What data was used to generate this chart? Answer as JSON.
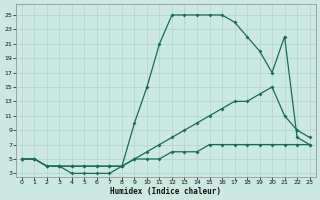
{
  "xlabel": "Humidex (Indice chaleur)",
  "bg_color": "#cce9e1",
  "line_color": "#1a6b5a",
  "grid_color": "#aed4cc",
  "xlim": [
    -0.5,
    23.5
  ],
  "ylim": [
    2.5,
    26.5
  ],
  "xticks": [
    0,
    1,
    2,
    3,
    4,
    5,
    6,
    7,
    8,
    9,
    10,
    11,
    12,
    13,
    14,
    15,
    16,
    17,
    18,
    19,
    20,
    21,
    22,
    23
  ],
  "yticks": [
    3,
    5,
    7,
    9,
    11,
    13,
    15,
    17,
    19,
    21,
    23,
    25
  ],
  "line1_x": [
    0,
    1,
    2,
    3,
    4,
    5,
    6,
    7,
    8,
    9,
    10,
    11,
    12,
    13,
    14,
    15,
    16,
    17,
    18,
    19,
    20,
    21,
    22,
    23
  ],
  "line1_y": [
    5,
    5,
    4,
    4,
    4,
    4,
    4,
    4,
    4,
    5,
    5,
    5,
    6,
    6,
    6,
    7,
    7,
    7,
    7,
    7,
    7,
    7,
    7,
    7
  ],
  "line2_x": [
    0,
    1,
    2,
    3,
    4,
    5,
    6,
    7,
    8,
    9,
    10,
    11,
    12,
    13,
    14,
    15,
    16,
    17,
    18,
    19,
    20,
    21,
    22,
    23
  ],
  "line2_y": [
    5,
    5,
    4,
    4,
    4,
    4,
    4,
    4,
    4,
    5,
    6,
    7,
    8,
    9,
    10,
    11,
    12,
    13,
    13,
    14,
    15,
    11,
    9,
    8
  ],
  "line3_x": [
    0,
    1,
    2,
    3,
    4,
    5,
    6,
    7,
    8,
    9,
    10,
    11,
    12,
    13,
    14,
    15,
    16,
    17,
    18,
    19,
    20,
    21,
    22,
    23
  ],
  "line3_y": [
    5,
    5,
    4,
    4,
    3,
    3,
    3,
    3,
    4,
    10,
    15,
    21,
    25,
    25,
    25,
    25,
    25,
    24,
    22,
    20,
    17,
    22,
    8,
    7
  ]
}
